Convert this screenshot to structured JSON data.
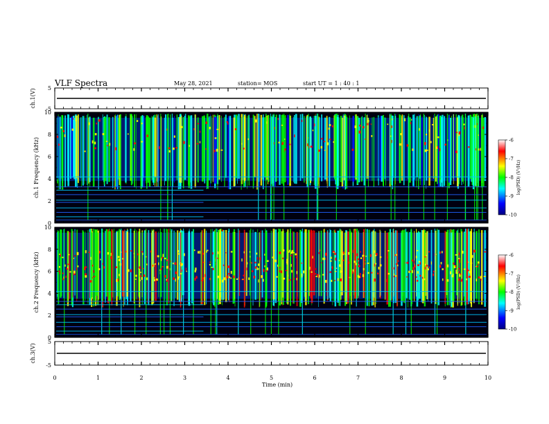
{
  "header": {
    "title": "VLF Spectra",
    "date": "May 28, 2021",
    "station": "station= MOS",
    "start": "start  UT =   1 : 40 : 1"
  },
  "chart_data": {
    "type": "heatmap",
    "title": "VLF Spectra",
    "xlabel": "Time  (min)",
    "xlim": [
      0,
      10
    ],
    "x_ticks": [
      "0",
      "1",
      "2",
      "3",
      "4",
      "5",
      "6",
      "7",
      "8",
      "9",
      "10"
    ],
    "panels": [
      {
        "name": "ch.1(V)",
        "type": "line",
        "ylim": [
          -5,
          5
        ],
        "y_ticks": [
          "5",
          "-5"
        ],
        "level": 0
      },
      {
        "name": "ch.1",
        "type": "heatmap",
        "ylabel": "Frequency (kHz)",
        "ylim": [
          0,
          10
        ],
        "y_ticks": [
          "0",
          "2",
          "4",
          "6",
          "8",
          "10"
        ],
        "emission_band_khz": [
          3.8,
          9.5
        ],
        "colorbar": {
          "label": "log(PSD) (V²/Hz)",
          "range": [
            -10,
            -6
          ],
          "ticks": [
            "-6",
            "-7",
            "-8",
            "-9",
            "-10"
          ]
        }
      },
      {
        "name": "ch.2",
        "type": "heatmap",
        "ylabel": "Frequency (kHz)",
        "ylim": [
          0,
          10
        ],
        "y_ticks": [
          "0",
          "2",
          "4",
          "6",
          "8",
          "10"
        ],
        "emission_band_khz": [
          3.5,
          9.5
        ],
        "colorbar": {
          "label": "log(PSD) (V²/Hz)",
          "range": [
            -10,
            -6
          ],
          "ticks": [
            "-6",
            "-7",
            "-8",
            "-9",
            "-10"
          ]
        }
      },
      {
        "name": "ch.3(V)",
        "type": "line",
        "ylim": [
          -5,
          5
        ],
        "y_ticks": [
          "5",
          "-5"
        ],
        "level": 0
      }
    ],
    "colormap": [
      "#000080",
      "#0000ff",
      "#00ffff",
      "#00ff00",
      "#ffff00",
      "#ff0000",
      "#ffffff"
    ],
    "grid": false
  }
}
